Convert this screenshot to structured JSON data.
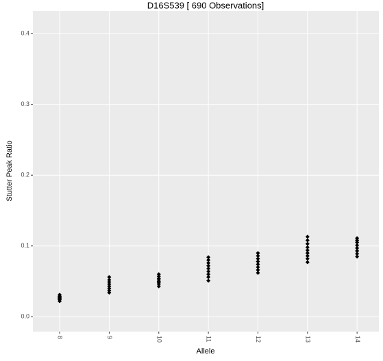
{
  "chart_data": {
    "type": "scatter",
    "title": "D16S539  [ 690  Observations]",
    "x_label": "Allele",
    "y_label": "Stutter Peak Ratio",
    "x": [
      8,
      8,
      8,
      8,
      8,
      8,
      8,
      8,
      9,
      9,
      9,
      9,
      9,
      9,
      9,
      9,
      10,
      10,
      10,
      10,
      10,
      10,
      10,
      10,
      11,
      11,
      11,
      11,
      11,
      11,
      11,
      11,
      11,
      12,
      12,
      12,
      12,
      12,
      12,
      12,
      12,
      13,
      13,
      13,
      13,
      13,
      13,
      13,
      13,
      13,
      14,
      14,
      14,
      14,
      14,
      14,
      14,
      14
    ],
    "y": [
      0.022,
      0.024,
      0.025,
      0.026,
      0.027,
      0.028,
      0.029,
      0.031,
      0.034,
      0.037,
      0.04,
      0.043,
      0.046,
      0.049,
      0.052,
      0.056,
      0.043,
      0.046,
      0.048,
      0.05,
      0.052,
      0.054,
      0.057,
      0.06,
      0.051,
      0.056,
      0.06,
      0.064,
      0.068,
      0.072,
      0.076,
      0.08,
      0.084,
      0.062,
      0.066,
      0.07,
      0.074,
      0.078,
      0.082,
      0.086,
      0.09,
      0.077,
      0.082,
      0.086,
      0.09,
      0.094,
      0.098,
      0.103,
      0.108,
      0.113,
      0.085,
      0.089,
      0.093,
      0.097,
      0.101,
      0.105,
      0.108,
      0.111
    ],
    "color": "#000000",
    "xlim": [
      7.46,
      14.44
    ],
    "xticks": [
      8,
      9,
      10,
      11,
      12,
      13,
      14
    ],
    "ylim": [
      -0.021,
      0.432
    ],
    "yticks": [
      {
        "value": 0,
        "label": "0.0"
      },
      0.1,
      0.2,
      0.3,
      0.4
    ],
    "grid": true
  }
}
